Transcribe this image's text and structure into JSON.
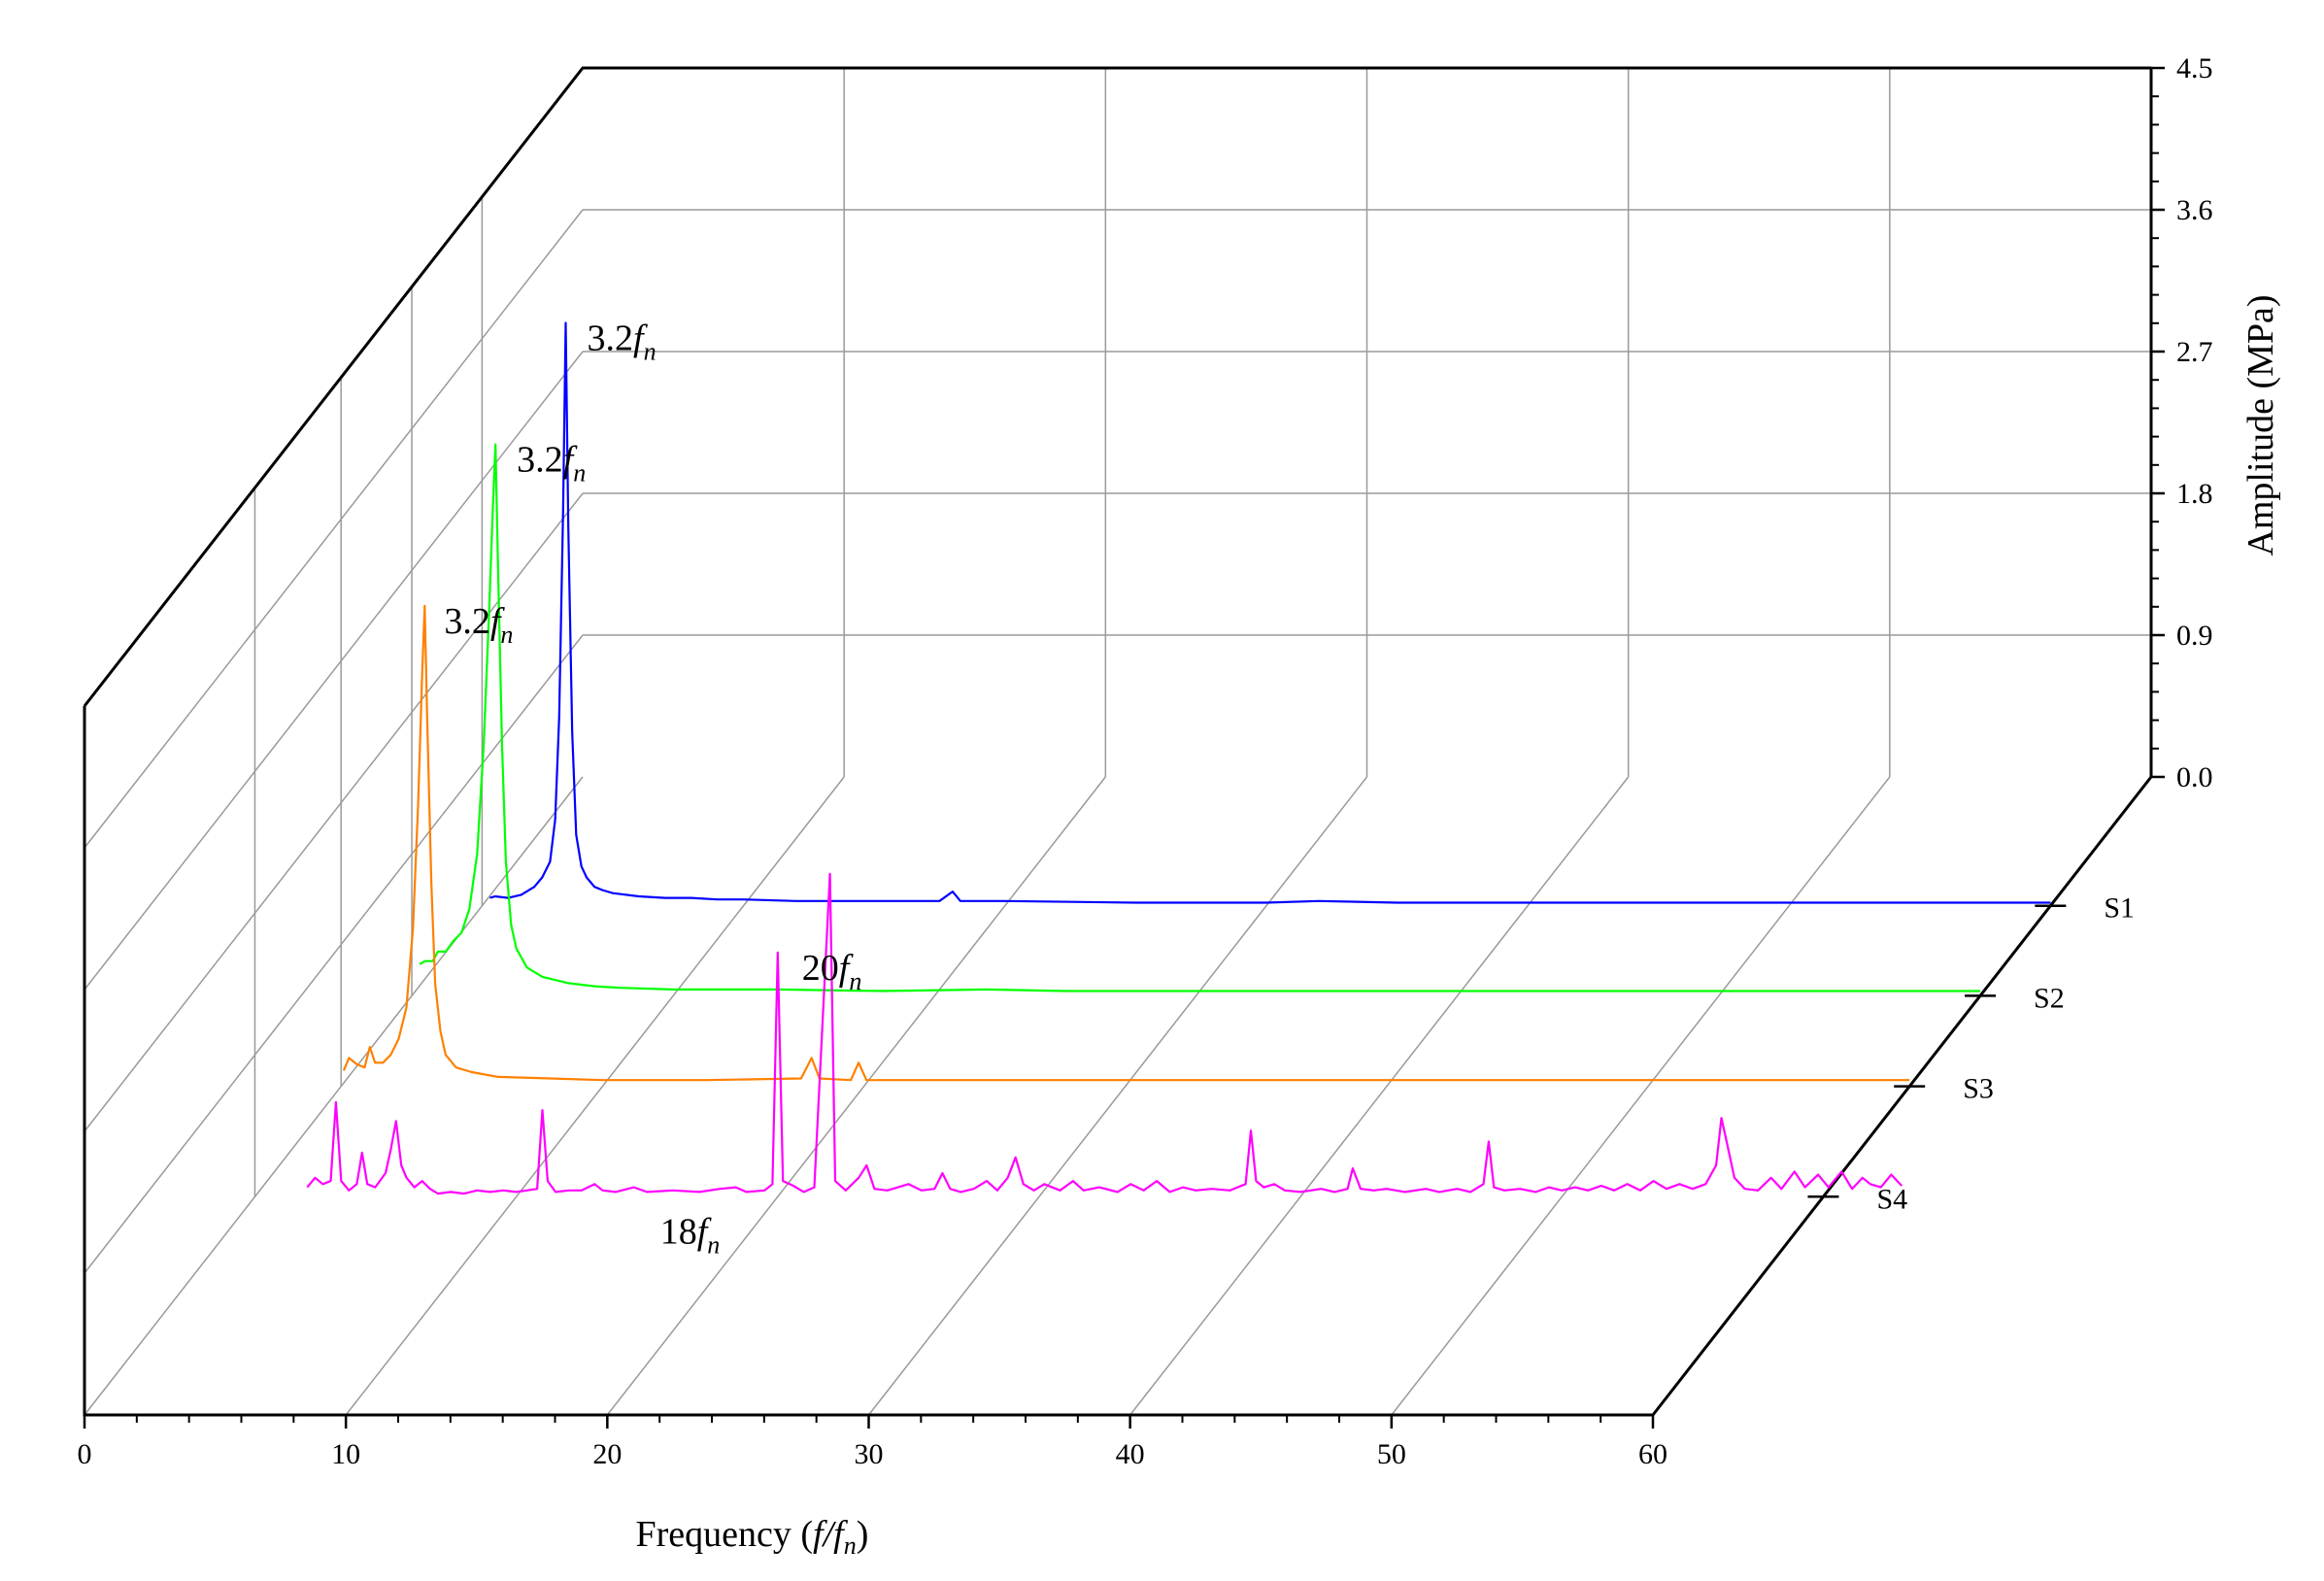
{
  "chart_data": {
    "type": "line",
    "style": "3d-waterfall",
    "xlabel": "Frequency (f/f",
    "xlabel_sub": "n",
    "xlabel_end": ")",
    "zlabel": "Amplitude (MPa)",
    "x_ticks": [
      "0",
      "10",
      "20",
      "30",
      "40",
      "50",
      "60"
    ],
    "z_ticks": [
      "0.0",
      "0.9",
      "1.8",
      "2.7",
      "3.6",
      "4.5"
    ],
    "xlim": [
      0,
      60
    ],
    "zlim": [
      0,
      4.5
    ],
    "grid": true,
    "series": [
      {
        "name": "S1",
        "color": "#0000ff",
        "points": [
          [
            0.3,
            0.05
          ],
          [
            0.5,
            0.06
          ],
          [
            1.0,
            0.05
          ],
          [
            1.5,
            0.07
          ],
          [
            2.0,
            0.12
          ],
          [
            2.3,
            0.18
          ],
          [
            2.6,
            0.28
          ],
          [
            2.8,
            0.55
          ],
          [
            2.95,
            1.2
          ],
          [
            3.1,
            2.5
          ],
          [
            3.2,
            3.7
          ],
          [
            3.3,
            2.4
          ],
          [
            3.45,
            1.1
          ],
          [
            3.6,
            0.45
          ],
          [
            3.8,
            0.25
          ],
          [
            4.0,
            0.18
          ],
          [
            4.3,
            0.12
          ],
          [
            4.6,
            0.1
          ],
          [
            5.0,
            0.08
          ],
          [
            6,
            0.06
          ],
          [
            7,
            0.05
          ],
          [
            8,
            0.05
          ],
          [
            9,
            0.04
          ],
          [
            10,
            0.04
          ],
          [
            12,
            0.03
          ],
          [
            14,
            0.03
          ],
          [
            16,
            0.03
          ],
          [
            17.5,
            0.03
          ],
          [
            18,
            0.09
          ],
          [
            18.3,
            0.03
          ],
          [
            20,
            0.03
          ],
          [
            25,
            0.02
          ],
          [
            30,
            0.02
          ],
          [
            32,
            0.03
          ],
          [
            35,
            0.02
          ],
          [
            40,
            0.02
          ],
          [
            45,
            0.02
          ],
          [
            50,
            0.02
          ],
          [
            55,
            0.02
          ],
          [
            60,
            0.02
          ]
        ]
      },
      {
        "name": "S2",
        "color": "#00ff00",
        "points": [
          [
            0.3,
            0.2
          ],
          [
            0.5,
            0.22
          ],
          [
            0.8,
            0.22
          ],
          [
            1.0,
            0.28
          ],
          [
            1.3,
            0.28
          ],
          [
            1.6,
            0.35
          ],
          [
            1.9,
            0.4
          ],
          [
            2.2,
            0.55
          ],
          [
            2.5,
            0.9
          ],
          [
            2.75,
            1.6
          ],
          [
            2.95,
            2.4
          ],
          [
            3.1,
            3.1
          ],
          [
            3.2,
            3.5
          ],
          [
            3.3,
            2.7
          ],
          [
            3.45,
            1.6
          ],
          [
            3.6,
            0.85
          ],
          [
            3.8,
            0.45
          ],
          [
            4.0,
            0.3
          ],
          [
            4.4,
            0.18
          ],
          [
            5.0,
            0.12
          ],
          [
            6,
            0.08
          ],
          [
            7,
            0.06
          ],
          [
            8,
            0.05
          ],
          [
            10,
            0.04
          ],
          [
            14,
            0.04
          ],
          [
            18,
            0.03
          ],
          [
            22,
            0.04
          ],
          [
            25,
            0.03
          ],
          [
            30,
            0.03
          ],
          [
            35,
            0.03
          ],
          [
            40,
            0.03
          ],
          [
            45,
            0.03
          ],
          [
            50,
            0.03
          ],
          [
            55,
            0.03
          ],
          [
            60,
            0.03
          ]
        ]
      },
      {
        "name": "S3",
        "color": "#ff8000",
        "points": [
          [
            0.1,
            0.1
          ],
          [
            0.3,
            0.18
          ],
          [
            0.6,
            0.14
          ],
          [
            0.9,
            0.12
          ],
          [
            1.1,
            0.25
          ],
          [
            1.3,
            0.15
          ],
          [
            1.6,
            0.15
          ],
          [
            1.9,
            0.2
          ],
          [
            2.2,
            0.3
          ],
          [
            2.5,
            0.5
          ],
          [
            2.75,
            1.0
          ],
          [
            2.95,
            1.8
          ],
          [
            3.1,
            2.6
          ],
          [
            3.2,
            3.05
          ],
          [
            3.3,
            2.3
          ],
          [
            3.45,
            1.3
          ],
          [
            3.6,
            0.65
          ],
          [
            3.8,
            0.35
          ],
          [
            4.0,
            0.2
          ],
          [
            4.4,
            0.12
          ],
          [
            5.0,
            0.09
          ],
          [
            6,
            0.06
          ],
          [
            8,
            0.05
          ],
          [
            10,
            0.04
          ],
          [
            14,
            0.04
          ],
          [
            17.6,
            0.05
          ],
          [
            18,
            0.18
          ],
          [
            18.3,
            0.05
          ],
          [
            19.5,
            0.04
          ],
          [
            19.8,
            0.15
          ],
          [
            20.1,
            0.04
          ],
          [
            22,
            0.04
          ],
          [
            26,
            0.04
          ],
          [
            30,
            0.04
          ],
          [
            34,
            0.04
          ],
          [
            38,
            0.04
          ],
          [
            42,
            0.04
          ],
          [
            46,
            0.04
          ],
          [
            50,
            0.04
          ],
          [
            55,
            0.04
          ],
          [
            60,
            0.04
          ]
        ]
      },
      {
        "name": "S4",
        "color": "#ff00ff",
        "points": [
          [
            2.0,
            0.06
          ],
          [
            2.3,
            0.12
          ],
          [
            2.6,
            0.08
          ],
          [
            2.9,
            0.1
          ],
          [
            3.1,
            0.6
          ],
          [
            3.3,
            0.1
          ],
          [
            3.6,
            0.04
          ],
          [
            3.9,
            0.08
          ],
          [
            4.1,
            0.28
          ],
          [
            4.3,
            0.08
          ],
          [
            4.6,
            0.06
          ],
          [
            5.0,
            0.15
          ],
          [
            5.2,
            0.3
          ],
          [
            5.4,
            0.48
          ],
          [
            5.6,
            0.2
          ],
          [
            5.8,
            0.12
          ],
          [
            6.1,
            0.06
          ],
          [
            6.4,
            0.1
          ],
          [
            6.7,
            0.05
          ],
          [
            7.0,
            0.02
          ],
          [
            7.5,
            0.03
          ],
          [
            8,
            0.02
          ],
          [
            8.5,
            0.04
          ],
          [
            9,
            0.03
          ],
          [
            9.5,
            0.04
          ],
          [
            10,
            0.03
          ],
          [
            10.4,
            0.04
          ],
          [
            10.8,
            0.05
          ],
          [
            11.0,
            0.55
          ],
          [
            11.2,
            0.1
          ],
          [
            11.5,
            0.03
          ],
          [
            12,
            0.04
          ],
          [
            12.5,
            0.04
          ],
          [
            13.0,
            0.08
          ],
          [
            13.3,
            0.04
          ],
          [
            13.8,
            0.03
          ],
          [
            14.5,
            0.06
          ],
          [
            15,
            0.03
          ],
          [
            16,
            0.04
          ],
          [
            17,
            0.03
          ],
          [
            17.8,
            0.05
          ],
          [
            18.4,
            0.06
          ],
          [
            18.8,
            0.03
          ],
          [
            19.5,
            0.04
          ],
          [
            19.8,
            0.08
          ],
          [
            20.0,
            1.55
          ],
          [
            20.2,
            0.1
          ],
          [
            20.6,
            0.07
          ],
          [
            21.0,
            0.03
          ],
          [
            21.4,
            0.06
          ],
          [
            22.0,
            2.05
          ],
          [
            22.2,
            0.1
          ],
          [
            22.6,
            0.04
          ],
          [
            23.1,
            0.12
          ],
          [
            23.4,
            0.2
          ],
          [
            23.7,
            0.05
          ],
          [
            24.2,
            0.04
          ],
          [
            25,
            0.08
          ],
          [
            25.5,
            0.04
          ],
          [
            26.0,
            0.05
          ],
          [
            26.3,
            0.15
          ],
          [
            26.6,
            0.05
          ],
          [
            27.0,
            0.03
          ],
          [
            27.5,
            0.05
          ],
          [
            28.0,
            0.1
          ],
          [
            28.4,
            0.04
          ],
          [
            28.8,
            0.12
          ],
          [
            29.1,
            0.25
          ],
          [
            29.4,
            0.08
          ],
          [
            29.8,
            0.04
          ],
          [
            30.2,
            0.08
          ],
          [
            30.8,
            0.04
          ],
          [
            31.3,
            0.1
          ],
          [
            31.7,
            0.04
          ],
          [
            32.3,
            0.06
          ],
          [
            33,
            0.03
          ],
          [
            33.5,
            0.08
          ],
          [
            34.0,
            0.04
          ],
          [
            34.5,
            0.1
          ],
          [
            35,
            0.03
          ],
          [
            35.5,
            0.06
          ],
          [
            36,
            0.04
          ],
          [
            36.6,
            0.05
          ],
          [
            37.3,
            0.04
          ],
          [
            37.9,
            0.08
          ],
          [
            38.1,
            0.42
          ],
          [
            38.3,
            0.1
          ],
          [
            38.6,
            0.06
          ],
          [
            39,
            0.08
          ],
          [
            39.4,
            0.04
          ],
          [
            40,
            0.03
          ],
          [
            40.8,
            0.05
          ],
          [
            41.3,
            0.03
          ],
          [
            41.8,
            0.05
          ],
          [
            42.0,
            0.18
          ],
          [
            42.3,
            0.05
          ],
          [
            42.8,
            0.04
          ],
          [
            43.3,
            0.05
          ],
          [
            44,
            0.03
          ],
          [
            44.8,
            0.05
          ],
          [
            45.3,
            0.03
          ],
          [
            46,
            0.05
          ],
          [
            46.5,
            0.03
          ],
          [
            47.0,
            0.08
          ],
          [
            47.2,
            0.35
          ],
          [
            47.4,
            0.06
          ],
          [
            47.8,
            0.04
          ],
          [
            48.4,
            0.05
          ],
          [
            49,
            0.03
          ],
          [
            49.5,
            0.06
          ],
          [
            50,
            0.04
          ],
          [
            50.5,
            0.06
          ],
          [
            51,
            0.04
          ],
          [
            51.5,
            0.07
          ],
          [
            52,
            0.04
          ],
          [
            52.5,
            0.08
          ],
          [
            53,
            0.04
          ],
          [
            53.5,
            0.1
          ],
          [
            54,
            0.05
          ],
          [
            54.5,
            0.08
          ],
          [
            55,
            0.05
          ],
          [
            55.5,
            0.08
          ],
          [
            55.9,
            0.2
          ],
          [
            56.1,
            0.5
          ],
          [
            56.3,
            0.35
          ],
          [
            56.6,
            0.12
          ],
          [
            57,
            0.05
          ],
          [
            57.5,
            0.04
          ],
          [
            58,
            0.12
          ],
          [
            58.4,
            0.05
          ],
          [
            58.9,
            0.16
          ],
          [
            59.3,
            0.06
          ],
          [
            59.8,
            0.14
          ],
          [
            60.2,
            0.06
          ],
          [
            60.7,
            0.16
          ],
          [
            61.1,
            0.05
          ],
          [
            61.5,
            0.12
          ],
          [
            61.8,
            0.08
          ],
          [
            62.2,
            0.06
          ],
          [
            62.6,
            0.14
          ],
          [
            63.0,
            0.07
          ]
        ]
      }
    ],
    "annotations": [
      {
        "series": "S1",
        "x": 3.2,
        "pre": "3.2",
        "var": "f",
        "sub": "n"
      },
      {
        "series": "S2",
        "x": 3.2,
        "pre": "3.2",
        "var": "f",
        "sub": "n"
      },
      {
        "series": "S3",
        "x": 3.2,
        "pre": "3.2",
        "var": "f",
        "sub": "n"
      },
      {
        "series": "S4",
        "x": 18,
        "pre": "18",
        "var": "f",
        "sub": "n"
      },
      {
        "series": "S4",
        "x": 20,
        "pre": "20",
        "var": "f",
        "sub": "n"
      }
    ]
  }
}
